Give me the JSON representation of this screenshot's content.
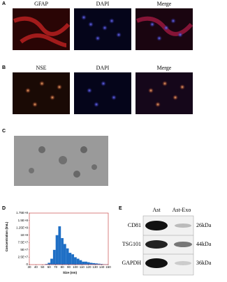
{
  "panel_a": {
    "label": "A",
    "titles": [
      "GFAP",
      "DAPI",
      "Merge"
    ]
  },
  "panel_b": {
    "label": "B",
    "titles": [
      "NSE",
      "DAPI",
      "Merge"
    ]
  },
  "panel_c": {
    "label": "C"
  },
  "panel_d": {
    "label": "D",
    "chart_data": {
      "type": "histogram",
      "x_label": "Size (nm)",
      "y_label": "Concentration (/mL)",
      "color": "#1f6fc5",
      "bins": [
        30,
        34,
        38,
        42,
        46,
        50,
        54,
        58,
        62,
        66,
        70,
        74,
        78,
        82,
        86,
        90,
        94,
        98,
        102,
        106,
        110,
        114,
        118,
        122,
        126,
        130,
        134,
        138,
        142,
        146,
        150
      ],
      "values": [
        0,
        0,
        0,
        0,
        0,
        0,
        2000000,
        6000000,
        20000000,
        50000000,
        100000000,
        130000000,
        90000000,
        70000000,
        55000000,
        40000000,
        35000000,
        25000000,
        20000000,
        15000000,
        10000000,
        10000000,
        8000000,
        6000000,
        5000000,
        4000000,
        3000000,
        2000000,
        1000000,
        1000000
      ],
      "xlim": [
        30,
        150
      ],
      "xticks": [
        30,
        40,
        50,
        60,
        70,
        80,
        90,
        100,
        110,
        120,
        130,
        140,
        150
      ],
      "ylim": [
        0,
        175000000
      ],
      "yticks": [
        0,
        {
          "value": 25000000,
          "label": "2.5E+7"
        },
        {
          "value": 50000000,
          "label": "5E+7"
        },
        {
          "value": 75000000,
          "label": "7.5E+7"
        },
        {
          "value": 100000000,
          "label": "1E+8"
        },
        {
          "value": 125000000,
          "label": "1.25E+8"
        },
        {
          "value": 150000000,
          "label": "1.5E+8"
        },
        {
          "value": 175000000,
          "label": "1.75E+8"
        }
      ]
    }
  },
  "panel_e": {
    "label": "E",
    "columns": [
      "Ast",
      "Ast-Exo"
    ],
    "rows": [
      [
        "CD81",
        "26kDa"
      ],
      [
        "TSG101",
        "44kDa"
      ],
      [
        "GAPDH",
        "36kDa"
      ]
    ]
  }
}
